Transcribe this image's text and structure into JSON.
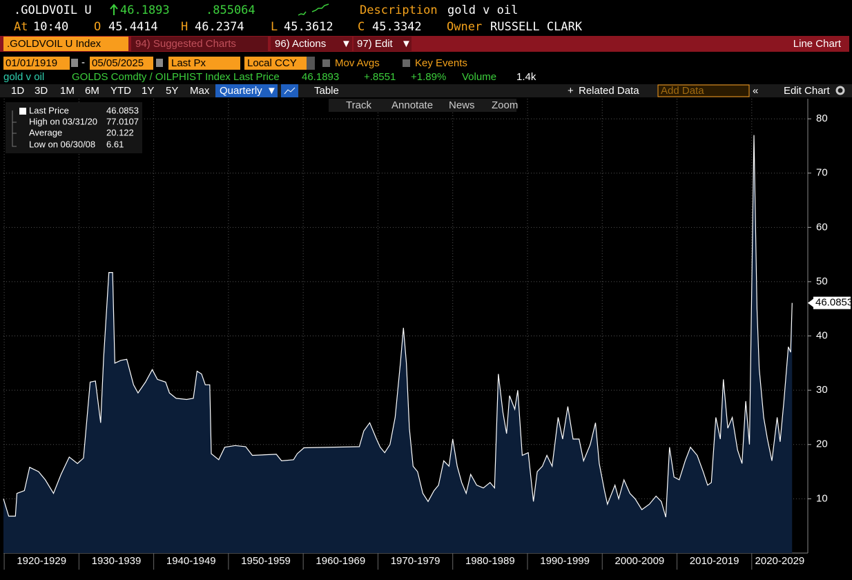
{
  "header": {
    "ticker": ".GOLDVOIL U",
    "last": "46.1893",
    "change": ".855064",
    "description_label": "Description",
    "description": "gold v oil",
    "at_label": "At",
    "time": "10:40",
    "open_label": "O",
    "open": "45.4414",
    "high_label": "H",
    "high": "46.2374",
    "low_label": "L",
    "low": "45.3612",
    "close_label": "C",
    "close": "45.3342",
    "owner_label": "Owner",
    "owner": "RUSSELL CLARK"
  },
  "menu": {
    "security": ".GOLDVOIL U Index",
    "suggested": "94) Suggested Charts",
    "actions": "96) Actions",
    "edit": "97) Edit",
    "chart_kind": "Line Chart"
  },
  "controls": {
    "start_date": "01/01/1919",
    "end_date": "05/05/2025",
    "field": "Last Px",
    "currency": "Local CCY",
    "mov_avgs": "Mov Avgs",
    "key_events": "Key Events"
  },
  "info": {
    "name": "gold v oil",
    "source": "GOLDS Comdty / OILPHIST Index Last Price",
    "price": "46.1893",
    "change": "+.8551",
    "pct_change": "+1.89%",
    "volume_label": "Volume",
    "volume": "1.4k"
  },
  "toolbar": {
    "periods": [
      "1D",
      "3D",
      "1M",
      "6M",
      "YTD",
      "1Y",
      "5Y",
      "Max"
    ],
    "frequency": "Quarterly",
    "table": "Table",
    "related": "Related Data",
    "add_data": "Add Data",
    "edit_chart": "Edit Chart"
  },
  "tools": [
    "Track",
    "Annotate",
    "News",
    "Zoom"
  ],
  "legend": {
    "rows": [
      [
        "Last Price",
        "46.0853"
      ],
      [
        "High on 03/31/20",
        "77.0107"
      ],
      [
        "Average",
        "20.122"
      ],
      [
        "Low on 06/30/08",
        "6.61"
      ]
    ]
  },
  "chart_data": {
    "type": "area",
    "line_color": "#ffffff",
    "fill_color": "#0c1e38",
    "grid": true,
    "xlim": [
      1919.9,
      2027.5
    ],
    "ylim": [
      0,
      83.7
    ],
    "yticks": [
      10,
      20,
      30,
      40,
      50,
      60,
      70,
      80
    ],
    "xticks": [
      {
        "value": 1920,
        "label": "1920-1929"
      },
      {
        "value": 1930,
        "label": "1930-1939"
      },
      {
        "value": 1940,
        "label": "1940-1949"
      },
      {
        "value": 1950,
        "label": "1950-1959"
      },
      {
        "value": 1960,
        "label": "1960-1969"
      },
      {
        "value": 1970,
        "label": "1970-1979"
      },
      {
        "value": 1980,
        "label": "1980-1989"
      },
      {
        "value": 1990,
        "label": "1990-1999"
      },
      {
        "value": 2000,
        "label": "2000-2009"
      },
      {
        "value": 2010,
        "label": "2010-2019"
      },
      {
        "value": 2020,
        "label": "2020-2029"
      }
    ],
    "x": [
      1919.9,
      1920.6,
      1921.5,
      1921.7,
      1922.7,
      1923.4,
      1924.6,
      1925.5,
      1926.6,
      1927.6,
      1928.7,
      1929.8,
      1930.6,
      1931.5,
      1932.2,
      1932.9,
      1933.3,
      1934.0,
      1934.5,
      1934.8,
      1935.6,
      1936.4,
      1937.3,
      1937.9,
      1938.9,
      1939.8,
      1940.5,
      1941.6,
      1942.1,
      1943.0,
      1944.4,
      1945.3,
      1945.8,
      1946.4,
      1946.9,
      1947.5,
      1947.7,
      1948.7,
      1949.5,
      1950.9,
      1952.3,
      1953.2,
      1956.4,
      1957.1,
      1958.7,
      1959.2,
      1960.1,
      1967.5,
      1968.1,
      1968.9,
      1969.8,
      1970.3,
      1970.9,
      1971.6,
      1972.3,
      1973.0,
      1973.4,
      1973.8,
      1974.2,
      1974.7,
      1975.3,
      1976.0,
      1976.7,
      1977.5,
      1978.1,
      1978.8,
      1979.5,
      1980.0,
      1980.6,
      1981.2,
      1981.8,
      1982.4,
      1983.2,
      1984.1,
      1985.0,
      1985.6,
      1986.1,
      1986.7,
      1987.2,
      1987.6,
      1988.3,
      1988.7,
      1989.3,
      1990.1,
      1990.8,
      1991.3,
      1992.0,
      1992.6,
      1993.3,
      1994.1,
      1994.7,
      1995.4,
      1996.1,
      1996.9,
      1997.5,
      1998.4,
      1999.1,
      1999.6,
      2000.3,
      2000.7,
      2001.7,
      2002.2,
      2002.9,
      2003.7,
      2004.4,
      2005.3,
      2006.3,
      2007.2,
      2007.9,
      2008.5,
      2009.0,
      2009.6,
      2010.3,
      2011.1,
      2011.8,
      2012.7,
      2013.5,
      2014.1,
      2014.6,
      2015.2,
      2015.8,
      2016.2,
      2016.8,
      2017.4,
      2018.1,
      2018.7,
      2019.2,
      2019.7,
      2020.3,
      2020.7,
      2021.0,
      2021.6,
      2022.1,
      2022.7,
      2023.4,
      2023.8,
      2024.3,
      2024.9,
      2025.2,
      2025.4
    ],
    "values": [
      10,
      6.8,
      6.8,
      11,
      11.5,
      15.8,
      15,
      13.5,
      11,
      14.5,
      17.7,
      16.5,
      17.5,
      31.5,
      31.7,
      24,
      36,
      51.7,
      51.7,
      35,
      35.5,
      35.7,
      31,
      29.5,
      31.5,
      33.8,
      32,
      31.5,
      29.5,
      28.5,
      28.3,
      28.5,
      33.5,
      33,
      31,
      31,
      18.3,
      17.2,
      19.5,
      19.8,
      19.6,
      18,
      18.2,
      17,
      17.2,
      18.3,
      19.4,
      19.6,
      22.5,
      24,
      21,
      19.5,
      18.5,
      20,
      25,
      35,
      41.5,
      35,
      23,
      16,
      15,
      11,
      9.5,
      11.5,
      12.5,
      17,
      16,
      21,
      16,
      13,
      11,
      14.5,
      12.5,
      12,
      13,
      12,
      33,
      26,
      22,
      29,
      26.5,
      30,
      18,
      18.5,
      9.5,
      15,
      16,
      18,
      16,
      25,
      21,
      27,
      21,
      21,
      17,
      20,
      24,
      16.5,
      11.5,
      9,
      12.5,
      10,
      13.5,
      11,
      10,
      8,
      9,
      10.5,
      9.5,
      6.61,
      19.5,
      14,
      13.5,
      17,
      19.5,
      18,
      15,
      12.5,
      13,
      25,
      21,
      32,
      23,
      25,
      19,
      16.5,
      28,
      20,
      77.0107,
      45,
      34,
      25,
      21,
      17,
      25,
      20.5,
      28,
      38,
      37,
      46.0853
    ]
  }
}
